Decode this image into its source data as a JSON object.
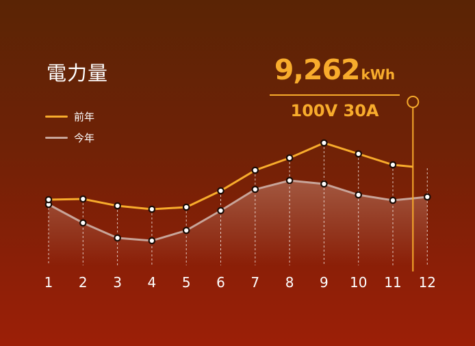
{
  "title": "電力量",
  "total": {
    "value": "9,262",
    "unit": "kWh"
  },
  "spec": "100V  30A",
  "colors": {
    "previous": "#f8ac2c",
    "current": "#c8a59a",
    "dot_stroke": "#1a0c06",
    "dot_fill": "#ffffff",
    "marker": "#f8ac2c"
  },
  "chart_data": {
    "type": "line",
    "categories": [
      "1",
      "2",
      "3",
      "4",
      "5",
      "6",
      "7",
      "8",
      "9",
      "10",
      "11",
      "12"
    ],
    "series": [
      {
        "name": "前年",
        "values": [
          291,
          290,
          300,
          305,
          302,
          278,
          248,
          230,
          208,
          224,
          240,
          245
        ]
      },
      {
        "name": "今年",
        "values": [
          298,
          325,
          347,
          351,
          336,
          307,
          276,
          263,
          268,
          284,
          292,
          287
        ]
      }
    ],
    "marker_month": "12",
    "legend_position": "top-left",
    "grid": false
  }
}
